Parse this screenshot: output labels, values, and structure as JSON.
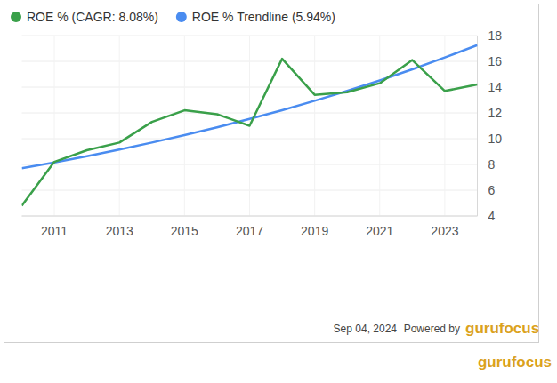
{
  "chart_data": {
    "type": "line",
    "x": [
      2010,
      2011,
      2012,
      2013,
      2014,
      2015,
      2016,
      2017,
      2018,
      2019,
      2020,
      2021,
      2022,
      2023,
      2024
    ],
    "series": [
      {
        "name": "ROE % (CAGR: 8.08%)",
        "color": "#3aa04a",
        "values": [
          4.8,
          8.2,
          9.1,
          9.7,
          11.3,
          12.2,
          11.9,
          11.0,
          16.2,
          13.4,
          13.6,
          14.3,
          16.1,
          13.7,
          14.2
        ]
      },
      {
        "name": "ROE % Trendline (5.94%)",
        "color": "#4a8cf0",
        "values": [
          7.7,
          8.16,
          8.64,
          9.15,
          9.7,
          10.27,
          10.88,
          11.53,
          12.21,
          12.94,
          13.71,
          14.52,
          15.38,
          16.3,
          17.26
        ]
      }
    ],
    "xlim": [
      2010,
      2024
    ],
    "xticks": [
      2011,
      2013,
      2015,
      2017,
      2019,
      2021,
      2023
    ],
    "ylim": [
      4,
      18
    ],
    "yticks": [
      4,
      6,
      8,
      10,
      12,
      14,
      16,
      18
    ],
    "grid": true,
    "legend": "top-left"
  },
  "footer": {
    "date": "Sep 04, 2024",
    "powered_by": "Powered by",
    "logo": "gurufocus"
  },
  "watermark": "gurufocus"
}
